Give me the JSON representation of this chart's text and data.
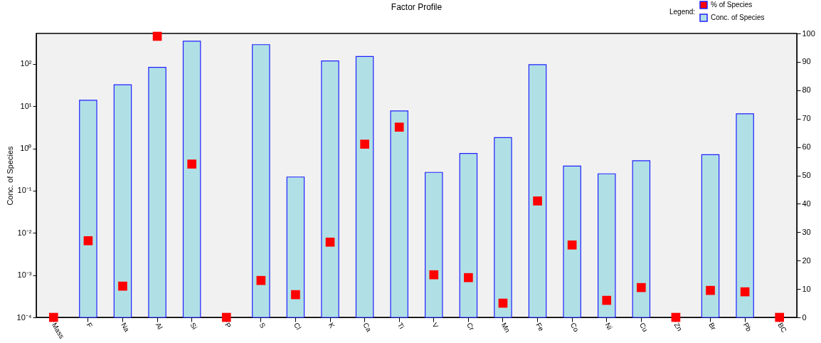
{
  "chart_data": {
    "type": "bar",
    "title": "Factor Profile",
    "ylabel": "Conc. of Species",
    "legend_title": "Legend:",
    "legend": "top right",
    "log": "y",
    "marker": "square",
    "categories": [
      "Mass",
      "F",
      "Na",
      "Al",
      "Si",
      "P",
      "S",
      "Cl",
      "K",
      "Ca",
      "Ti",
      "V",
      "Cr",
      "Mn",
      "Fe",
      "Co",
      "Ni",
      "Cu",
      "Zn",
      "Br",
      "Pb",
      "BC"
    ],
    "ylim": [
      0.0001,
      525
    ],
    "yticks": [
      {
        "value": 0.0001,
        "label": "10⁻⁴"
      },
      {
        "value": 0.001,
        "label": "10⁻³"
      },
      {
        "value": 0.01,
        "label": "10⁻²"
      },
      {
        "value": 0.1,
        "label": "10⁻¹"
      },
      {
        "value": 1,
        "label": "10⁰"
      },
      {
        "value": 10,
        "label": "10¹"
      },
      {
        "value": 100,
        "label": "10²"
      }
    ],
    "y2lim": [
      0,
      100
    ],
    "y2ticks": [
      0,
      10,
      20,
      30,
      40,
      50,
      60,
      70,
      80,
      90,
      100
    ],
    "series": [
      {
        "name": "% of Species",
        "type": "scatter",
        "axis": "y2",
        "color": "#ff0000",
        "values": [
          0,
          27,
          11,
          99,
          54,
          0,
          13,
          8,
          26.5,
          61,
          67,
          15,
          14,
          5,
          41,
          25.5,
          6,
          10.5,
          0,
          9.5,
          9,
          0
        ]
      },
      {
        "name": "Conc. of Species",
        "color": "#b0e0e6",
        "values": [
          null,
          13.8,
          32,
          83,
          345,
          null,
          285,
          0.21,
          117,
          150,
          7.7,
          0.27,
          0.76,
          1.8,
          96,
          0.38,
          0.25,
          0.51,
          null,
          0.71,
          6.6,
          null
        ]
      }
    ]
  }
}
